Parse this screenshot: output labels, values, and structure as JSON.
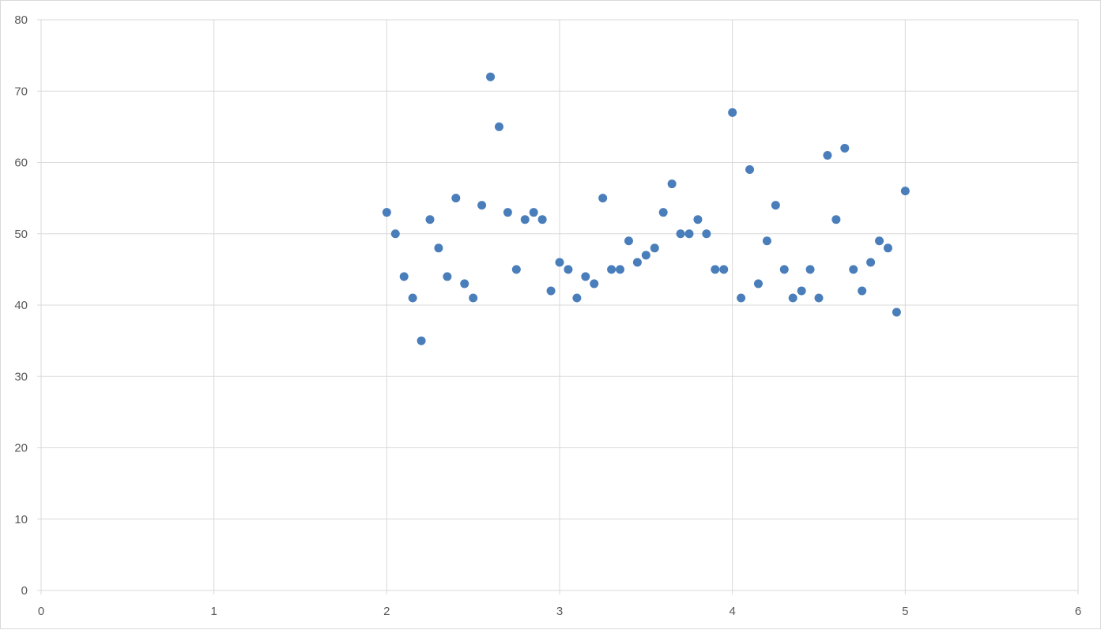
{
  "chart_data": {
    "type": "scatter",
    "title": "",
    "xlabel": "",
    "ylabel": "",
    "xlim": [
      0,
      6
    ],
    "ylim": [
      0,
      80
    ],
    "x_ticks": [
      "0",
      "1",
      "2",
      "3",
      "4",
      "5",
      "6"
    ],
    "y_ticks": [
      "0",
      "10",
      "20",
      "30",
      "40",
      "50",
      "60",
      "70",
      "80"
    ],
    "grid": true,
    "legend": "none",
    "marker_color": "#4a7ebb",
    "gridline_color": "#d9d9d9",
    "series": [
      {
        "x": [
          2.0,
          2.05,
          2.1,
          2.15,
          2.2,
          2.25,
          2.3,
          2.35,
          2.4,
          2.45,
          2.5,
          2.55,
          2.6,
          2.65,
          2.7,
          2.75,
          2.8,
          2.85,
          2.9,
          2.95,
          3.0,
          3.05,
          3.1,
          3.15,
          3.2,
          3.25,
          3.3,
          3.35,
          3.4,
          3.45,
          3.5,
          3.55,
          3.6,
          3.65,
          3.7,
          3.75,
          3.8,
          3.85,
          3.9,
          3.95,
          4.0,
          4.05,
          4.1,
          4.15,
          4.2,
          4.25,
          4.3,
          4.35,
          4.4,
          4.45,
          4.5,
          4.55,
          4.6,
          4.65,
          4.7,
          4.75,
          4.8,
          4.85,
          4.9,
          4.95,
          5.0
        ],
        "y": [
          53,
          50,
          44,
          41,
          35,
          52,
          48,
          44,
          55,
          43,
          41,
          54,
          72,
          65,
          53,
          45,
          52,
          53,
          52,
          42,
          46,
          45,
          41,
          44,
          43,
          55,
          45,
          45,
          49,
          46,
          47,
          48,
          53,
          57,
          50,
          50,
          52,
          50,
          45,
          45,
          67,
          41,
          59,
          43,
          49,
          54,
          45,
          41,
          42,
          45,
          41,
          61,
          52,
          62,
          45,
          42,
          46,
          49,
          48,
          39,
          56
        ]
      }
    ]
  }
}
